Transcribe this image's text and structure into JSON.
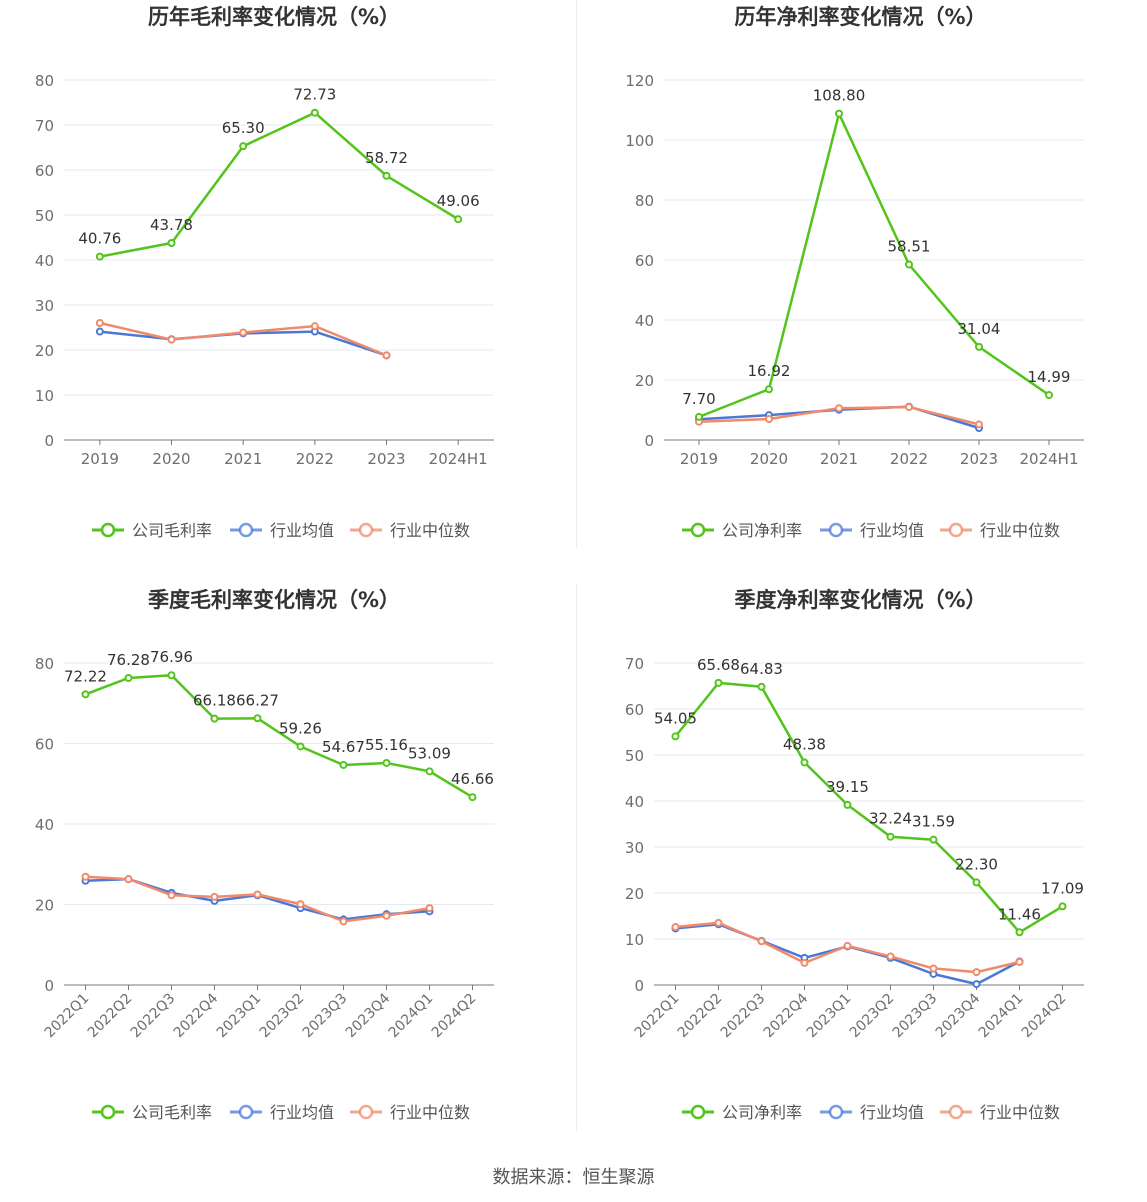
{
  "colors": {
    "company": "#52c41a",
    "industry_avg": "#4a78d8",
    "industry_median": "#f08a6a",
    "grid": "#e6e8f2",
    "axis": "#7a7a7a",
    "tick_text": "#6e6e6e",
    "label_text": "#333333",
    "title_text": "#333333"
  },
  "charts": [
    {
      "id": "annual-gross-margin",
      "chart_data": {
        "type": "line",
        "title": "历年毛利率变化情况（%）",
        "categories": [
          "2019",
          "2020",
          "2021",
          "2022",
          "2023",
          "2024H1"
        ],
        "ylim": [
          0,
          80
        ],
        "yticks": [
          "0",
          "10",
          "20",
          "30",
          "40",
          "50",
          "60",
          "70",
          "80"
        ],
        "grid": true,
        "legend_position": "bottom-center",
        "series": [
          {
            "name": "公司毛利率",
            "role": "company",
            "values": [
              40.76,
              43.78,
              65.3,
              72.73,
              58.72,
              49.06
            ],
            "labels": [
              "40.76",
              "43.78",
              "65.30",
              "72.73",
              "58.72",
              "49.06"
            ]
          },
          {
            "name": "行业均值",
            "role": "industry_avg",
            "values": [
              24.1,
              22.4,
              23.7,
              24.1,
              18.8,
              null
            ]
          },
          {
            "name": "行业中位数",
            "role": "industry_median",
            "values": [
              26.0,
              22.3,
              23.9,
              25.3,
              18.8,
              null
            ]
          }
        ]
      }
    },
    {
      "id": "annual-net-margin",
      "chart_data": {
        "type": "line",
        "title": "历年净利率变化情况（%）",
        "categories": [
          "2019",
          "2020",
          "2021",
          "2022",
          "2023",
          "2024H1"
        ],
        "ylim": [
          0,
          120
        ],
        "yticks": [
          "0",
          "20",
          "40",
          "60",
          "80",
          "100",
          "120"
        ],
        "grid": true,
        "legend_position": "bottom-center",
        "series": [
          {
            "name": "公司净利率",
            "role": "company",
            "values": [
              7.7,
              16.92,
              108.8,
              58.51,
              31.04,
              14.99
            ],
            "labels": [
              "7.70",
              "16.92",
              "108.80",
              "58.51",
              "31.04",
              "14.99"
            ]
          },
          {
            "name": "行业均值",
            "role": "industry_avg",
            "values": [
              6.9,
              8.3,
              10.1,
              11.1,
              4.0,
              null
            ]
          },
          {
            "name": "行业中位数",
            "role": "industry_median",
            "values": [
              6.1,
              7.0,
              10.6,
              11.0,
              5.2,
              null
            ]
          }
        ]
      }
    },
    {
      "id": "quarterly-gross-margin",
      "chart_data": {
        "type": "line",
        "title": "季度毛利率变化情况（%）",
        "categories": [
          "2022Q1",
          "2022Q2",
          "2022Q3",
          "2022Q4",
          "2023Q1",
          "2023Q2",
          "2023Q3",
          "2023Q4",
          "2024Q1",
          "2024Q2"
        ],
        "ylim": [
          0,
          80
        ],
        "yticks": [
          "0",
          "20",
          "40",
          "60",
          "80"
        ],
        "grid": true,
        "legend_position": "bottom-center",
        "series": [
          {
            "name": "公司毛利率",
            "role": "company",
            "values": [
              72.22,
              76.28,
              76.96,
              66.18,
              66.27,
              59.26,
              54.67,
              55.16,
              53.09,
              46.66
            ],
            "labels": [
              "72.22",
              "76.28",
              "76.96",
              "66.18",
              "66.27",
              "59.26",
              "54.67",
              "55.16",
              "53.09",
              "46.66"
            ]
          },
          {
            "name": "行业均值",
            "role": "industry_avg",
            "values": [
              25.9,
              26.3,
              22.9,
              20.9,
              22.3,
              19.1,
              16.3,
              17.6,
              18.3,
              null
            ]
          },
          {
            "name": "行业中位数",
            "role": "industry_median",
            "values": [
              26.9,
              26.3,
              22.3,
              21.9,
              22.5,
              20.1,
              15.8,
              17.2,
              19.1,
              null
            ]
          }
        ]
      }
    },
    {
      "id": "quarterly-net-margin",
      "chart_data": {
        "type": "line",
        "title": "季度净利率变化情况（%）",
        "categories": [
          "2022Q1",
          "2022Q2",
          "2022Q3",
          "2022Q4",
          "2023Q1",
          "2023Q2",
          "2023Q3",
          "2023Q4",
          "2024Q1",
          "2024Q2"
        ],
        "ylim": [
          0,
          70
        ],
        "yticks": [
          "0",
          "10",
          "20",
          "30",
          "40",
          "50",
          "60",
          "70"
        ],
        "grid": true,
        "legend_position": "bottom-center",
        "series": [
          {
            "name": "公司净利率",
            "role": "company",
            "values": [
              54.05,
              65.68,
              64.83,
              48.38,
              39.15,
              32.24,
              31.59,
              22.3,
              11.46,
              17.09
            ],
            "labels": [
              "54.05",
              "65.68",
              "64.83",
              "48.38",
              "39.15",
              "32.24",
              "31.59",
              "22.30",
              "11.46",
              "17.09"
            ]
          },
          {
            "name": "行业均值",
            "role": "industry_avg",
            "values": [
              12.3,
              13.2,
              9.6,
              5.9,
              8.4,
              5.9,
              2.4,
              0.2,
              5.1,
              null
            ]
          },
          {
            "name": "行业中位数",
            "role": "industry_median",
            "values": [
              12.6,
              13.5,
              9.5,
              4.8,
              8.5,
              6.2,
              3.6,
              2.8,
              5.0,
              null
            ]
          }
        ]
      }
    }
  ],
  "footer": {
    "source": "数据来源：恒生聚源"
  }
}
